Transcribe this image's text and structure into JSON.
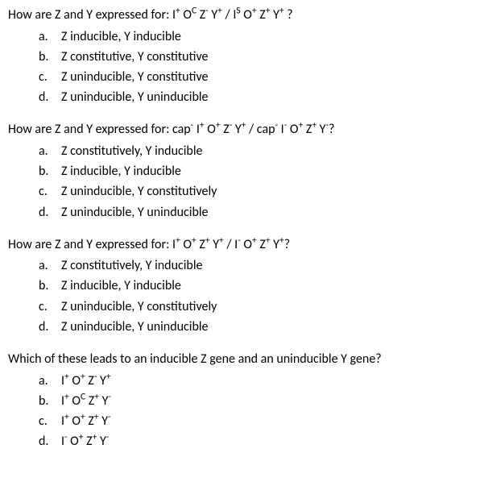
{
  "q1": {
    "stem_prefix": "How are Z and Y expressed for: ",
    "stem_genotype": "I<sup>+</sup> O<sup>C</sup> Z<sup>-</sup> Y<sup>+</sup> / I<sup>S</sup> O<sup>+</sup> Z<sup>+</sup> Y<sup>+</sup> ?",
    "a": "Z inducible, Y inducible",
    "b": "Z constitutive, Y constitutive",
    "c": "Z uninducible, Y constitutive",
    "d": "Z uninducible, Y uninducible"
  },
  "q2": {
    "stem_prefix": "How are Z and Y expressed for: ",
    "stem_genotype": "cap<sup>-</sup> I<sup>+</sup> O<sup>+</sup> Z<sup>-</sup> Y<sup>+</sup> / cap<sup>-</sup> I<sup>-</sup> O<sup>+</sup> Z<sup>+</sup> Y<sup>-</sup>?",
    "a": "Z constitutively, Y inducible",
    "b": "Z inducible, Y inducible",
    "c": "Z uninducible, Y constitutively",
    "d": "Z uninducible, Y uninducible"
  },
  "q3": {
    "stem_prefix": "How are Z and Y expressed for: ",
    "stem_genotype": "I<sup>+</sup> O<sup>+</sup> Z<sup>+</sup> Y<sup>+</sup> / I<sup>-</sup> O<sup>+</sup> Z<sup>+</sup> Y<sup>+</sup>?",
    "a": "Z constitutively, Y inducible",
    "b": "Z inducible, Y inducible",
    "c": "Z uninducible, Y constitutively",
    "d": "Z uninducible, Y uninducible"
  },
  "q4": {
    "stem_text": "Which of these leads to an inducible Z gene and an uninducible Y gene?",
    "a": "I<sup>+</sup> O<sup>+</sup> Z<sup>-</sup> Y<sup>+</sup>",
    "b": "I<sup>+</sup> O<sup>C</sup> Z<sup>+</sup> Y<sup>-</sup>",
    "c": "I<sup>+</sup> O<sup>+</sup> Z<sup>+</sup> Y<sup>-</sup>",
    "d": "I<sup>-</sup> O<sup>+</sup> Z<sup>+</sup> Y<sup>-</sup>"
  },
  "letters": {
    "a": "a.",
    "b": "b.",
    "c": "c.",
    "d": "d."
  }
}
